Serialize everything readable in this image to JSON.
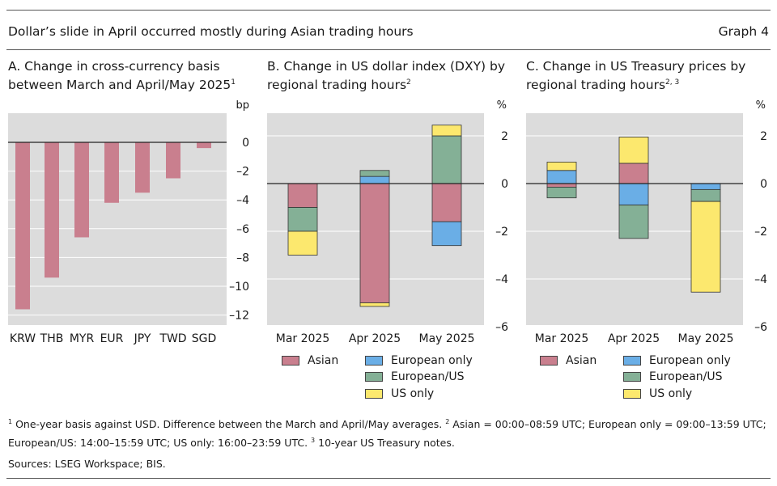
{
  "header": {
    "title": "Dollar’s slide in April occurred mostly during Asian trading hours",
    "graph_label": "Graph 4"
  },
  "panels": {
    "a": {
      "title": "A. Change in cross-currency basis between March and April/May 2025",
      "note_ref": "1",
      "unit": "bp"
    },
    "b": {
      "title": "B. Change in US dollar index (DXY) by regional trading hours",
      "note_ref": "2",
      "unit": "%"
    },
    "c": {
      "title": "C. Change in US Treasury prices by regional trading hours",
      "note_ref": "2, 3",
      "unit": "%"
    }
  },
  "colors": {
    "asian": "#c97f8e",
    "european_only": "#6aaee6",
    "european_us": "#84b096",
    "us_only": "#fce86e",
    "plot_bg": "#dcdcdc",
    "bar_a": "#c97f8e"
  },
  "legend": {
    "asian": "Asian",
    "european_only": "European only",
    "european_us": "European/US",
    "us_only": "US only"
  },
  "chart_data": [
    {
      "type": "bar",
      "title": "A. Change in cross-currency basis between March and April/May 2025",
      "ylabel": "bp",
      "categories": [
        "KRW",
        "THB",
        "MYR",
        "EUR",
        "JPY",
        "TWD",
        "SGD"
      ],
      "values": [
        -11.6,
        -9.4,
        -6.6,
        -4.2,
        -3.5,
        -2.5,
        -0.4
      ],
      "ylim": [
        -12.5,
        1.5
      ],
      "yticks": [
        0,
        -2,
        -4,
        -6,
        -8,
        -10,
        -12
      ],
      "yticklabels": [
        "0",
        "–2",
        "–4",
        "–6",
        "–8",
        "–10",
        "–12"
      ],
      "grid": true
    },
    {
      "type": "bar",
      "stacked": true,
      "title": "B. Change in US dollar index (DXY) by regional trading hours",
      "ylabel": "%",
      "categories": [
        "Mar 2025",
        "Apr 2025",
        "May 2025"
      ],
      "series": [
        {
          "name": "Asian",
          "key": "asian",
          "values": [
            -1.0,
            -5.0,
            -1.6
          ]
        },
        {
          "name": "European only",
          "key": "european_only",
          "values": [
            0,
            0.3,
            -1.0
          ]
        },
        {
          "name": "European/US",
          "key": "european_us",
          "values": [
            -1.0,
            0.25,
            2.0
          ]
        },
        {
          "name": "US only",
          "key": "us_only",
          "values": [
            -1.0,
            -0.15,
            0.45
          ]
        }
      ],
      "ylim": [
        -6,
        2.5
      ],
      "yticks": [
        2,
        0,
        -2,
        -4,
        -6
      ],
      "yticklabels": [
        "2",
        "0",
        "–2",
        "–4",
        "–6"
      ],
      "grid": true
    },
    {
      "type": "bar",
      "stacked": true,
      "title": "C. Change in US Treasury prices by regional trading hours",
      "ylabel": "%",
      "categories": [
        "Mar 2025",
        "Apr 2025",
        "May 2025"
      ],
      "series": [
        {
          "name": "Asian",
          "key": "asian",
          "values": [
            -0.15,
            0.85,
            0
          ]
        },
        {
          "name": "European only",
          "key": "european_only",
          "values": [
            0.55,
            -0.9,
            -0.25
          ]
        },
        {
          "name": "European/US",
          "key": "european_us",
          "values": [
            -0.45,
            -1.4,
            -0.5
          ]
        },
        {
          "name": "US only",
          "key": "us_only",
          "values": [
            0.35,
            1.1,
            -3.8
          ]
        }
      ],
      "ylim": [
        -6,
        2.5
      ],
      "yticks": [
        2,
        0,
        -2,
        -4,
        -6
      ],
      "yticklabels": [
        "2",
        "0",
        "–2",
        "–4",
        "–6"
      ],
      "grid": true
    }
  ],
  "footnotes": {
    "n1_marker": "1",
    "n1_text": "One-year basis against USD. Difference between the March and April/May averages.",
    "n2_marker": "2",
    "n2_text": "Asian = 00:00–08:59 UTC; European only = 09:00–13:59 UTC; European/US: 14:00–15:59 UTC; US only: 16:00–23:59 UTC.",
    "n3_marker": "3",
    "n3_text": "10-year US Treasury notes.",
    "sources": "Sources: LSEG Workspace; BIS."
  }
}
